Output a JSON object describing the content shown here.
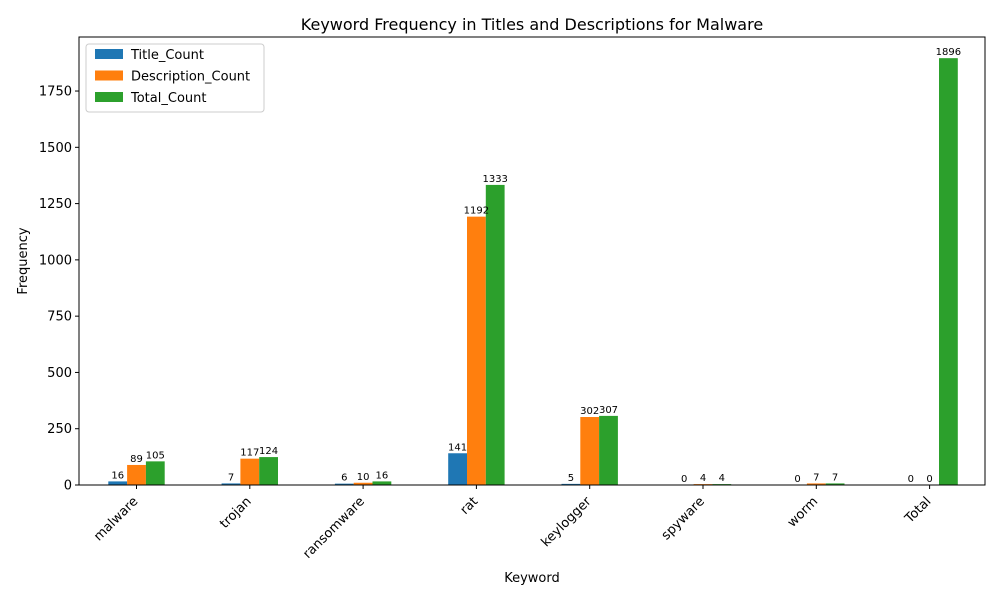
{
  "chart_data": {
    "type": "bar",
    "title": "Keyword Frequency in Titles and Descriptions for Malware",
    "xlabel": "Keyword",
    "ylabel": "Frequency",
    "categories": [
      "malware",
      "trojan",
      "ransomware",
      "rat",
      "keylogger",
      "spyware",
      "worm",
      "Total"
    ],
    "series": [
      {
        "name": "Title_Count",
        "color": "#1f77b4",
        "values": [
          16,
          7,
          6,
          141,
          5,
          0,
          0,
          0
        ],
        "labels": [
          "16",
          "7",
          "6",
          "141",
          "5",
          "0",
          "0",
          "0"
        ]
      },
      {
        "name": "Description_Count",
        "color": "#ff7f0e",
        "values": [
          89,
          117,
          10,
          1192,
          302,
          4,
          7,
          0
        ],
        "labels": [
          "89",
          "117",
          "10",
          "1192",
          "302",
          "4",
          "7",
          "0"
        ]
      },
      {
        "name": "Total_Count",
        "color": "#2ca02c",
        "values": [
          105,
          124,
          16,
          1333,
          307,
          4,
          7,
          1896
        ],
        "labels": [
          "105",
          "124",
          "16",
          "1333",
          "307",
          "4",
          "7",
          "1896"
        ]
      }
    ],
    "ylim": [
      0,
      1990
    ],
    "yticks": [
      0,
      250,
      500,
      750,
      1000,
      1250,
      1500,
      1750
    ],
    "ytick_labels": [
      "0",
      "250",
      "500",
      "750",
      "1000",
      "1250",
      "1500",
      "1750"
    ],
    "grid": false,
    "legend_position": "top-left"
  }
}
